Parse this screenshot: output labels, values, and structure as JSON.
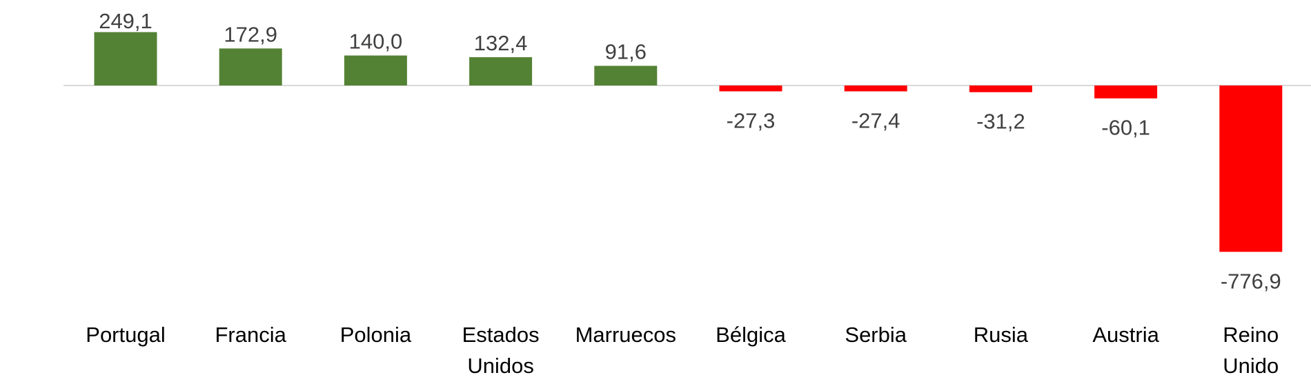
{
  "chart_data": {
    "type": "bar",
    "title": "",
    "xlabel": "",
    "ylabel": "",
    "categories": [
      [
        "Portugal"
      ],
      [
        "Francia"
      ],
      [
        "Polonia"
      ],
      [
        "Estados",
        "Unidos"
      ],
      [
        "Marruecos"
      ],
      [
        "Bélgica"
      ],
      [
        "Serbia"
      ],
      [
        "Rusia"
      ],
      [
        "Austria"
      ],
      [
        "Reino",
        "Unido"
      ]
    ],
    "values": [
      249.1,
      172.9,
      140.0,
      132.4,
      91.6,
      -27.3,
      -27.4,
      -31.2,
      -60.1,
      -776.9
    ],
    "value_labels": [
      "249,1",
      "172,9",
      "140,0",
      "132,4",
      "91,6",
      "-27,3",
      "-27,4",
      "-31,2",
      "-60,1",
      "-776,9"
    ],
    "colors": {
      "positive": "#548235",
      "negative": "#ff0000",
      "axis": "#d9d9d9"
    },
    "grid": false,
    "legend": "none"
  }
}
